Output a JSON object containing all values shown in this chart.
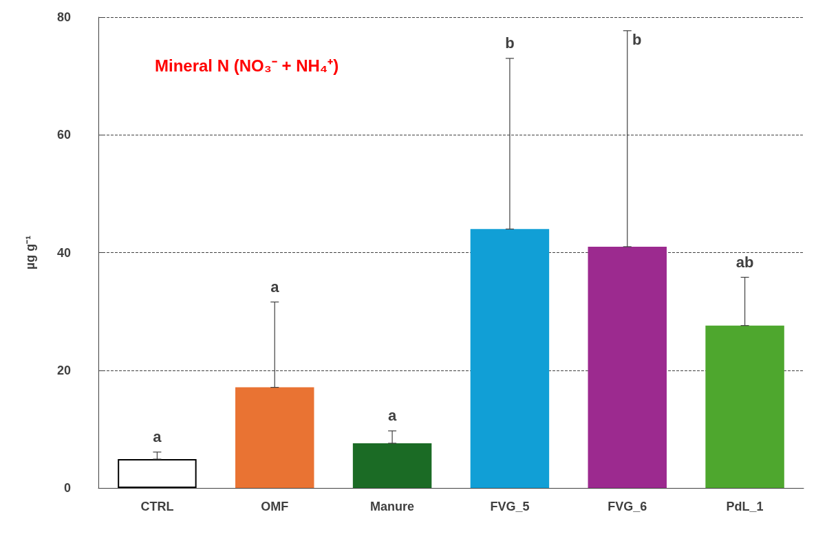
{
  "chart_data": {
    "type": "bar",
    "title": "Mineral N (NO₃⁻ + NH₄⁺)",
    "ylabel": "µg g⁻¹",
    "categories": [
      "CTRL",
      "OMF",
      "Manure",
      "FVG_5",
      "FVG_6",
      "PdL_1"
    ],
    "values": [
      4.9,
      17.1,
      7.6,
      44.0,
      41.0,
      27.6
    ],
    "colors": [
      "#ffffff",
      "#e97333",
      "#1b6b25",
      "#119fd6",
      "#9c2a8f",
      "#4ea72e"
    ],
    "errors": [
      [
        4.9,
        6.1
      ],
      [
        17.1,
        31.6
      ],
      [
        7.6,
        9.7
      ],
      [
        44.0,
        73.0
      ],
      [
        41.0,
        77.7
      ],
      [
        27.6,
        35.8
      ]
    ],
    "ylim": [
      0,
      80
    ],
    "yticks": [
      0,
      20,
      40,
      60,
      80
    ],
    "grid": "y",
    "annotations": [
      "a",
      "a",
      "a",
      "b",
      "b",
      "ab"
    ]
  }
}
